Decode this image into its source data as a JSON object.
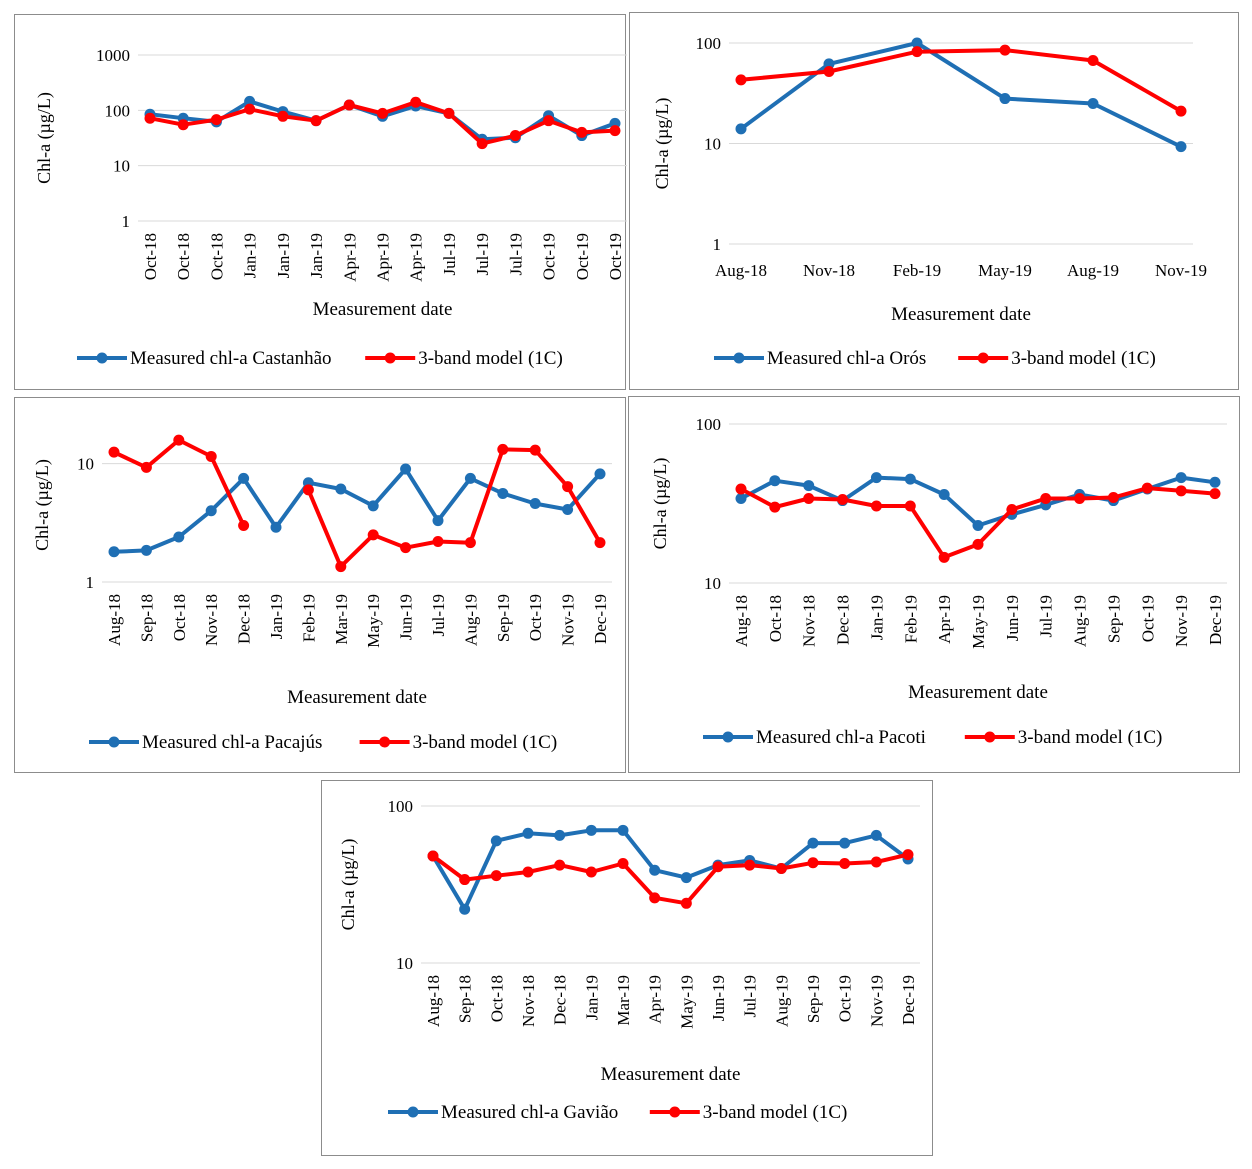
{
  "colors": {
    "measured": "#1f6fb4",
    "model": "#ff0000",
    "grid": "#d9d9d9"
  },
  "chart_data": [
    {
      "type": "line",
      "scale": "log",
      "categories": [
        "Oct-18",
        "Oct-18",
        "Oct-18",
        "Jan-19",
        "Jan-19",
        "Jan-19",
        "Apr-19",
        "Apr-19",
        "Apr-19",
        "Jul-19",
        "Jul-19",
        "Jul-19",
        "Oct-19",
        "Oct-19",
        "Oct-19"
      ],
      "ylim": [
        1,
        1000
      ],
      "yticks": [
        "1",
        "10",
        "100",
        "1000"
      ],
      "xlabel": "Measurement date",
      "ylabel": "Chl-a (µg/L)",
      "series": [
        {
          "name": "Measured chl-a Castanhão",
          "values": [
            85,
            72,
            62,
            145,
            95,
            65,
            125,
            78,
            120,
            88,
            30,
            32,
            80,
            35,
            58
          ]
        },
        {
          "name": "3-band model (1C)",
          "values": [
            72,
            55,
            68,
            105,
            78,
            65,
            125,
            88,
            140,
            88,
            25,
            35,
            65,
            40,
            43
          ]
        }
      ]
    },
    {
      "type": "line",
      "scale": "log",
      "categories": [
        "Aug-18",
        "Nov-18",
        "Feb-19",
        "May-19",
        "Aug-19",
        "Nov-19"
      ],
      "ylim": [
        1,
        100
      ],
      "yticks": [
        "1",
        "10",
        "100"
      ],
      "xlabel": "Measurement date",
      "ylabel": "Chl-a (µg/L)",
      "series": [
        {
          "name": "Measured chl-a Orós",
          "values": [
            14,
            62,
            100,
            28,
            25,
            9.3
          ]
        },
        {
          "name": "3-band model (1C)",
          "values": [
            43,
            52,
            82,
            85,
            67,
            21
          ]
        }
      ]
    },
    {
      "type": "line",
      "scale": "log",
      "categories": [
        "Aug-18",
        "Sep-18",
        "Oct-18",
        "Nov-18",
        "Dec-18",
        "Jan-19",
        "Feb-19",
        "Mar-19",
        "May-19",
        "Jun-19",
        "Jul-19",
        "Aug-19",
        "Sep-19",
        "Oct-19",
        "Nov-19",
        "Dec-19"
      ],
      "ylim": [
        1,
        20
      ],
      "yticks": [
        "1",
        "10"
      ],
      "xlabel": "Measurement date",
      "ylabel": "Chl-a (µg/L)",
      "series": [
        {
          "name": "Measured chl-a Pacajús",
          "values": [
            1.8,
            1.85,
            2.4,
            4,
            7.5,
            2.9,
            6.9,
            6.1,
            4.4,
            9,
            3.3,
            7.5,
            5.6,
            4.6,
            4.1,
            8.2
          ]
        },
        {
          "name": "3-band model (1C)",
          "values": [
            12.5,
            9.3,
            15.8,
            11.5,
            3.0,
            null,
            6.0,
            1.35,
            2.5,
            1.95,
            2.2,
            2.15,
            13.2,
            13,
            6.4,
            2.15
          ]
        }
      ]
    },
    {
      "type": "line",
      "scale": "log",
      "categories": [
        "Aug-18",
        "Oct-18",
        "Nov-18",
        "Dec-18",
        "Jan-19",
        "Feb-19",
        "Apr-19",
        "May-19",
        "Jun-19",
        "Jul-19",
        "Aug-19",
        "Sep-19",
        "Oct-19",
        "Nov-19",
        "Dec-19"
      ],
      "ylim": [
        10,
        100
      ],
      "yticks": [
        "10",
        "100"
      ],
      "xlabel": "Measurement date",
      "ylabel": "Chl-a (µg/L)",
      "series": [
        {
          "name": "Measured chl-a Pacoti",
          "values": [
            34,
            44,
            41,
            33,
            46,
            45,
            36,
            23,
            27,
            31,
            36,
            33,
            39,
            46,
            43
          ]
        },
        {
          "name": "3-band model (1C)",
          "values": [
            39,
            30,
            34,
            33.5,
            30.5,
            30.5,
            14.5,
            17.5,
            29,
            34,
            34,
            34.5,
            39.5,
            38,
            36.5
          ]
        }
      ]
    },
    {
      "type": "line",
      "scale": "log",
      "categories": [
        "Aug-18",
        "Sep-18",
        "Oct-18",
        "Nov-18",
        "Dec-18",
        "Jan-19",
        "Mar-19",
        "Apr-19",
        "May-19",
        "Jun-19",
        "Jul-19",
        "Aug-19",
        "Sep-19",
        "Oct-19",
        "Nov-19",
        "Dec-19"
      ],
      "ylim": [
        10,
        100
      ],
      "yticks": [
        "10",
        "100"
      ],
      "xlabel": "Measurement date",
      "ylabel": "Chl-a (µg/L)",
      "series": [
        {
          "name": "Measured chl-a Gavião",
          "values": [
            48,
            22,
            60,
            67,
            65,
            70,
            70,
            39,
            35,
            42,
            45,
            40,
            58,
            58,
            65,
            46
          ]
        },
        {
          "name": "3-band model (1C)",
          "values": [
            48,
            34,
            36,
            38,
            42,
            38,
            43,
            26,
            24,
            41,
            42,
            40,
            43.5,
            43,
            44,
            49
          ]
        }
      ]
    }
  ]
}
